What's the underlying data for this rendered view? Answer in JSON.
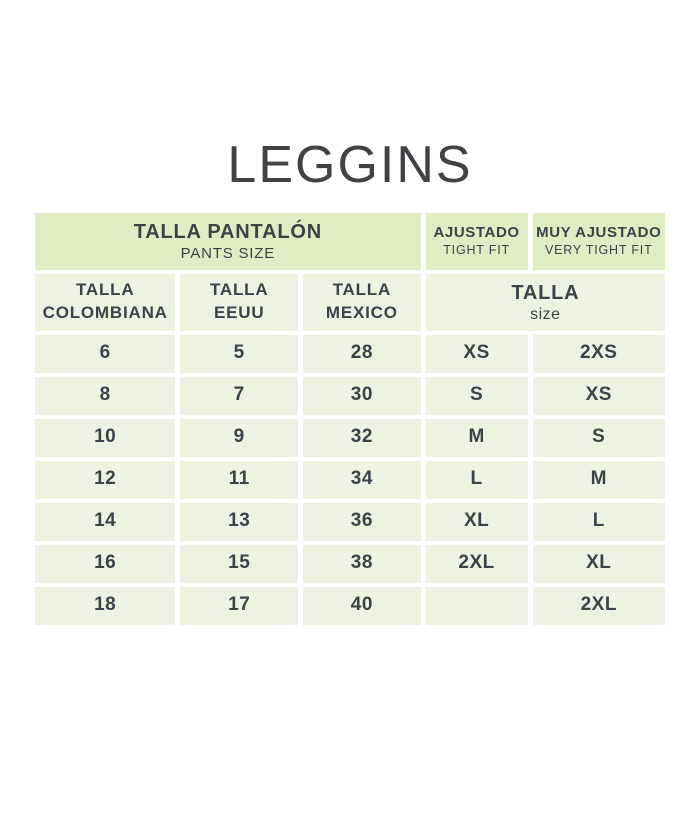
{
  "title": "LEGGINS",
  "colors": {
    "page_bg": "#ffffff",
    "header_bg": "#e0ecc3",
    "cell_bg": "#edf2e1",
    "text": "#3d4247",
    "title_color": "#414246"
  },
  "table": {
    "group_header": {
      "pants": {
        "title": "TALLA PANTALÓN",
        "subtitle": "PANTS SIZE"
      },
      "tight": {
        "title": "AJUSTADO",
        "subtitle": "TIGHT FIT"
      },
      "very_tight": {
        "title": "MUY AJUSTADO",
        "subtitle": "VERY TIGHT FIT"
      }
    },
    "column_header": {
      "colombiana_line1": "TALLA",
      "colombiana_line2": "COLOMBIANA",
      "eeuu_line1": "TALLA",
      "eeuu_line2": "EEUU",
      "mexico_line1": "TALLA",
      "mexico_line2": "MEXICO",
      "size_title": "TALLA",
      "size_subtitle": "size"
    }
  },
  "chart_data": {
    "type": "table",
    "title": "LEGGINS",
    "columns": [
      "TALLA COLOMBIANA",
      "TALLA EEUU",
      "TALLA MEXICO",
      "TALLA AJUSTADO / TIGHT FIT",
      "TALLA MUY AJUSTADO / VERY TIGHT FIT"
    ],
    "rows": [
      [
        "6",
        "5",
        "28",
        "XS",
        "2XS"
      ],
      [
        "8",
        "7",
        "30",
        "S",
        "XS"
      ],
      [
        "10",
        "9",
        "32",
        "M",
        "S"
      ],
      [
        "12",
        "11",
        "34",
        "L",
        "M"
      ],
      [
        "14",
        "13",
        "36",
        "XL",
        "L"
      ],
      [
        "16",
        "15",
        "38",
        "2XL",
        "XL"
      ],
      [
        "18",
        "17",
        "40",
        "",
        "2XL"
      ]
    ]
  }
}
